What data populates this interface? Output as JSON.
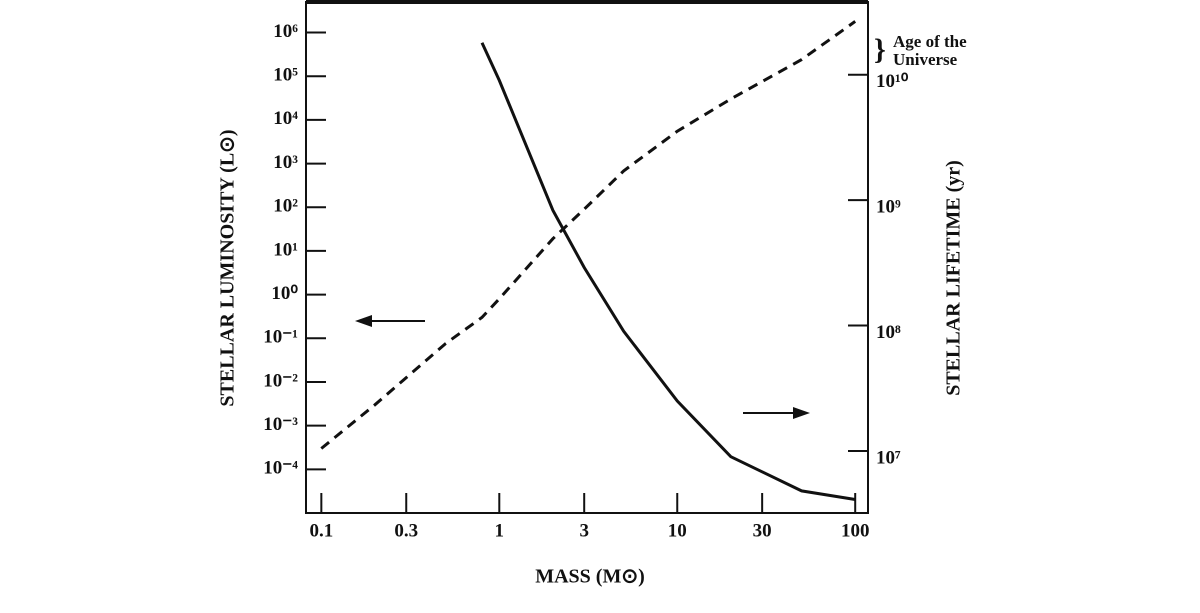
{
  "chart_data": {
    "type": "line",
    "xlabel": "MASS (M⊙)",
    "ylabel": "STELLAR   LUMINOSITY (L⊙)",
    "y2label": "STELLAR   LIFETIME (yr)",
    "annotation_lines": [
      "Age of the",
      "Universe"
    ],
    "xscale": "log",
    "yscale": "log",
    "y2scale": "log",
    "xlim": [
      0.082,
      118
    ],
    "ylim": [
      1e-05,
      5000000.0
    ],
    "y2lim": [
      3200000.0,
      38000000000.0
    ],
    "xticks": [
      0.1,
      0.3,
      1,
      3,
      10,
      30,
      100
    ],
    "yticks": [
      {
        "value": 1000000.0,
        "label": "10⁶"
      },
      {
        "value": 100000.0,
        "label": "10⁵"
      },
      {
        "value": 10000.0,
        "label": "10⁴"
      },
      {
        "value": 1000.0,
        "label": "10³"
      },
      {
        "value": 100.0,
        "label": "10²"
      },
      {
        "value": 10.0,
        "label": "10¹"
      },
      {
        "value": 1,
        "label": "10⁰"
      },
      {
        "value": 0.1,
        "label": "10⁻¹"
      },
      {
        "value": 0.01,
        "label": "10⁻²"
      },
      {
        "value": 0.001,
        "label": "10⁻³"
      },
      {
        "value": 0.0001,
        "label": "10⁻⁴"
      }
    ],
    "y2ticks": [
      {
        "value": 10000000000.0,
        "label": "10¹⁰"
      },
      {
        "value": 1000000000.0,
        "label": "10⁹"
      },
      {
        "value": 100000000.0,
        "label": "10⁸"
      },
      {
        "value": 10000000.0,
        "label": "10⁷"
      }
    ],
    "x": [
      0.1,
      0.2,
      0.5,
      0.8,
      1,
      2,
      3,
      5,
      10,
      20,
      50,
      100
    ],
    "series": [
      {
        "color": "#111111",
        "style": "dashed",
        "values": [
          0.0003,
          0.003,
          0.076,
          0.3,
          0.8,
          19,
          90,
          680,
          5500,
          30000,
          240000,
          1800000
        ]
      },
      {
        "color": "#111111",
        "style": "solid",
        "axis": "y2",
        "values": [
          null,
          null,
          null,
          18000000000,
          9000000000,
          830000000,
          290000000,
          90000000,
          25000000,
          9000000,
          4800000,
          4100000
        ]
      }
    ]
  }
}
